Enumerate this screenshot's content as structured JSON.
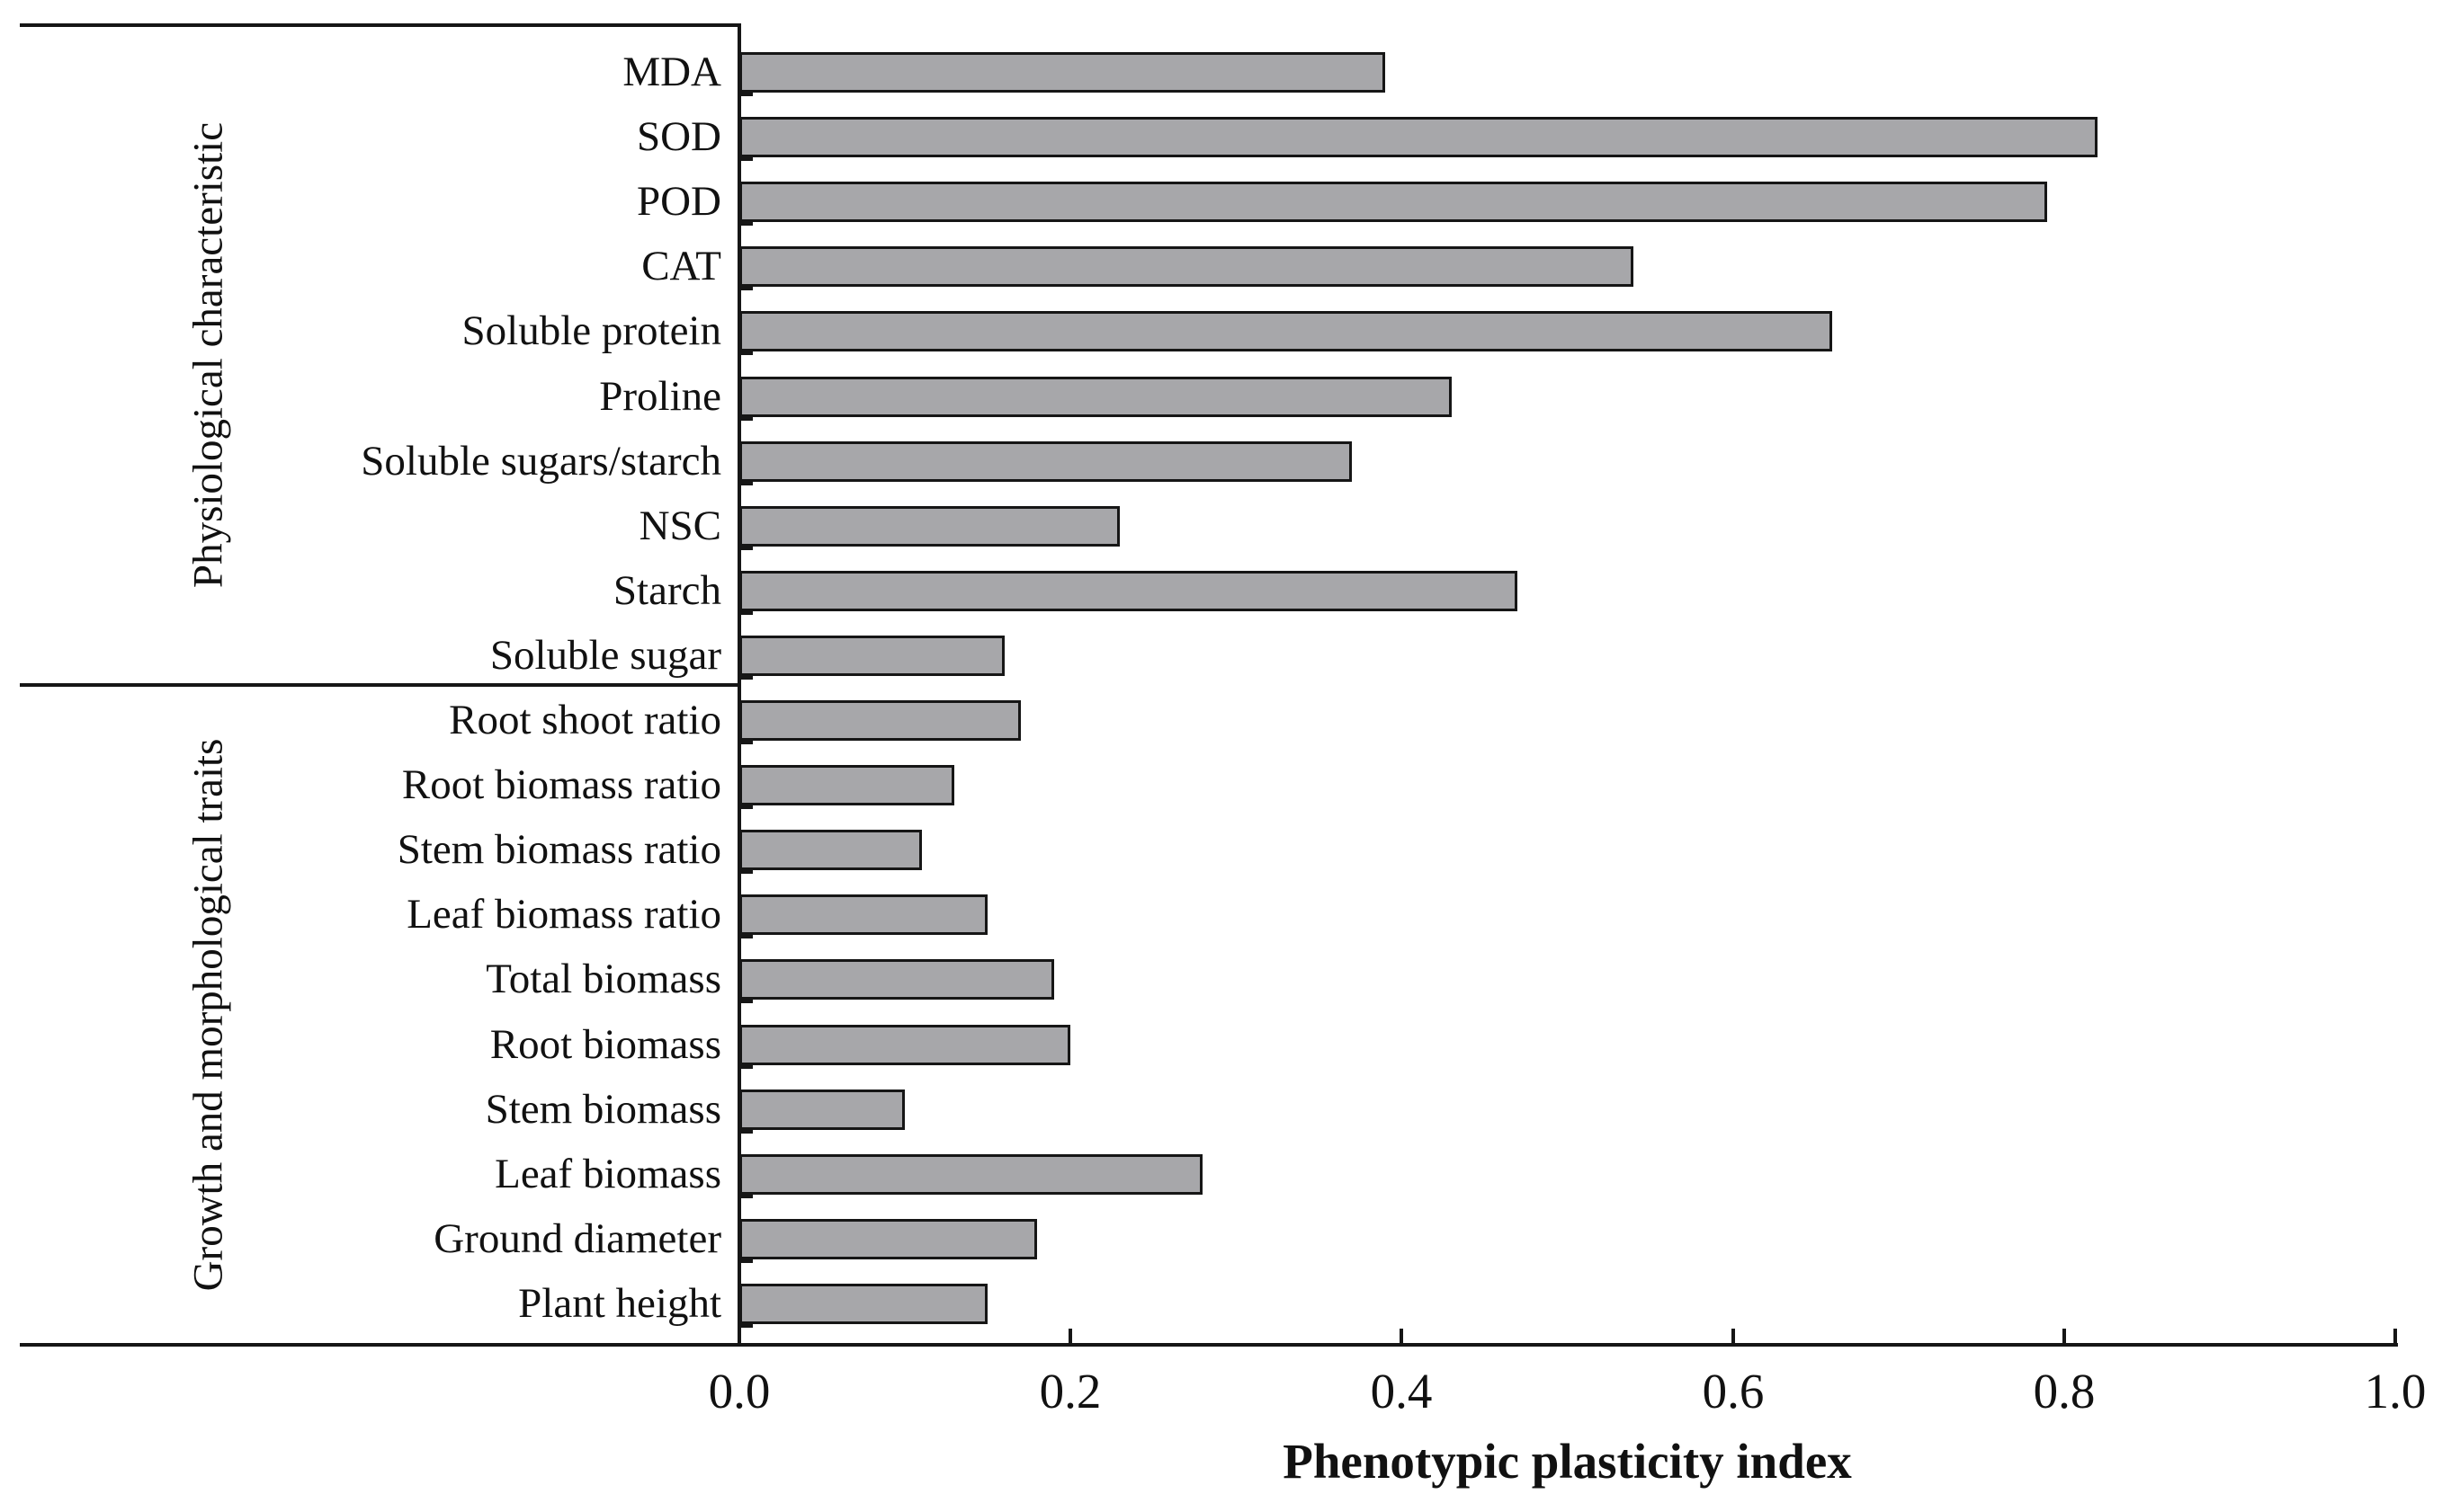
{
  "chart_data": {
    "type": "bar",
    "orientation": "horizontal",
    "title": "",
    "xlabel": "Phenotypic plasticity index",
    "ylabel": "",
    "xlim": [
      0.0,
      1.0
    ],
    "x_ticks": [
      0.0,
      0.2,
      0.4,
      0.6,
      0.8,
      1.0
    ],
    "x_tick_labels": [
      "0.0",
      "0.2",
      "0.4",
      "0.6",
      "0.8",
      "1.0"
    ],
    "grid": false,
    "legend": false,
    "bar_fill_color": "#a7a7aa",
    "bar_border_color": "#161616",
    "axis_color": "#161616",
    "groups": [
      {
        "name": "Physiological characteristic",
        "categories": [
          "MDA",
          "SOD",
          "POD",
          "CAT",
          "Soluble protein",
          "Proline",
          "Soluble sugars/starch",
          "NSC",
          "Starch",
          "Soluble sugar"
        ],
        "values": [
          0.39,
          0.82,
          0.79,
          0.54,
          0.66,
          0.43,
          0.37,
          0.23,
          0.47,
          0.16
        ]
      },
      {
        "name": "Growth and morphological traits",
        "categories": [
          "Root shoot ratio",
          "Root biomass ratio",
          "Stem biomass ratio",
          "Leaf biomass ratio",
          "Total biomass",
          "Root biomass",
          "Stem biomass",
          "Leaf biomass",
          "Ground diameter",
          "Plant height"
        ],
        "values": [
          0.17,
          0.13,
          0.11,
          0.15,
          0.19,
          0.2,
          0.1,
          0.28,
          0.18,
          0.15
        ]
      }
    ]
  }
}
